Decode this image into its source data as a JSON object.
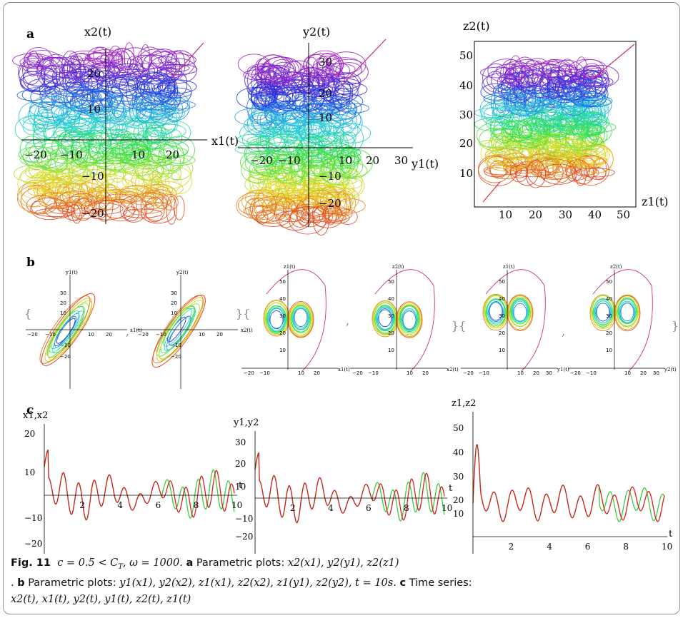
{
  "panel_labels": {
    "a": "a",
    "b": "b",
    "c": "c"
  },
  "caption": {
    "fig_label": "Fig. 11",
    "condition": "c = 0.5 < C",
    "condition_sub": "T",
    "omega": ",    ω = 1000.",
    "a_label": "a",
    "a_text": "Parametric plots:",
    "a_math": "x2(x1),    y2(y1),    z2(z1)",
    "b_label": "b",
    "b_lead": ".",
    "b_text": "Parametric plots:",
    "b_math": "y1(x1), y2(x2),    z1(x1), z2(x2),    z1(y1), z2(y2), t = 10s.",
    "c_label": "c",
    "c_text": "Time series:",
    "c_math": "x2(t), x1(t),    y2(t), y1(t),    z2(t), z1(t)"
  },
  "row_a": [
    {
      "xlabel": "x1(t)",
      "ylabel": "x2(t)",
      "xticks": [
        "−20",
        "−10",
        "10",
        "20"
      ],
      "yticks": [
        "20",
        "10",
        "−10",
        "−20"
      ]
    },
    {
      "xlabel": "y1(t)",
      "ylabel": "y2(t)",
      "xticks": [
        "−20",
        "−10",
        "10",
        "20",
        "30"
      ],
      "yticks": [
        "30",
        "20",
        "10",
        "−10",
        "−20"
      ]
    },
    {
      "xlabel": "z1(t)",
      "ylabel": "z2(t)",
      "xticks": [
        "10",
        "20",
        "30",
        "40",
        "50"
      ],
      "yticks": [
        "50",
        "40",
        "30",
        "20",
        "10"
      ]
    }
  ],
  "row_b": [
    {
      "xlabel": "x1(t)",
      "ylabel": "y1(t)",
      "xticks": [
        "−20",
        "−10",
        "10",
        "20"
      ],
      "yticks": [
        "30",
        "20",
        "10",
        "−10",
        "−20"
      ]
    },
    {
      "xlabel": "x2(t)",
      "ylabel": "y2(t)",
      "xticks": [
        "−20",
        "−10",
        "10",
        "20"
      ],
      "yticks": [
        "30",
        "20",
        "10",
        "−10",
        "−20"
      ]
    },
    {
      "xlabel": "x1(t)",
      "ylabel": "z1(t)",
      "xticks": [
        "−20",
        "−10",
        "10",
        "20"
      ],
      "yticks": [
        "50",
        "40",
        "30",
        "20",
        "10"
      ]
    },
    {
      "xlabel": "x2(t)",
      "ylabel": "z2(t)",
      "xticks": [
        "−20",
        "−10",
        "10",
        "20"
      ],
      "yticks": [
        "50",
        "40",
        "30",
        "20",
        "10"
      ]
    },
    {
      "xlabel": "y1(t)",
      "ylabel": "z1(t)",
      "xticks": [
        "−20",
        "−10",
        "10",
        "20",
        "30"
      ],
      "yticks": [
        "50",
        "40",
        "30",
        "20",
        "10"
      ]
    },
    {
      "xlabel": "y2(t)",
      "ylabel": "z2(t)",
      "xticks": [
        "−20",
        "−10",
        "10",
        "20",
        "30"
      ],
      "yticks": [
        "50",
        "40",
        "30",
        "20",
        "10"
      ]
    }
  ],
  "row_b_separators": [
    "{",
    ",",
    "}{",
    ",",
    "}{",
    ",",
    "}"
  ],
  "row_c": [
    {
      "ylabel": "x1,x2",
      "xlabel": "t",
      "xticks": [
        "2",
        "4",
        "6",
        "8",
        "10"
      ],
      "yticks": [
        "20",
        "10",
        "−10",
        "−20"
      ]
    },
    {
      "ylabel": "y1,y2",
      "xlabel": "t",
      "xticks": [
        "2",
        "4",
        "6",
        "8",
        "10"
      ],
      "yticks": [
        "30",
        "20",
        "10",
        "−10",
        "−20"
      ]
    },
    {
      "ylabel": "z1,z2",
      "xlabel": "t",
      "xticks": [
        "2",
        "4",
        "6",
        "8",
        "10"
      ],
      "yticks": [
        "50",
        "40",
        "30",
        "20",
        "10"
      ]
    }
  ],
  "series_colors": {
    "z1": "#d62020",
    "z2": "#3ecb3e"
  }
}
